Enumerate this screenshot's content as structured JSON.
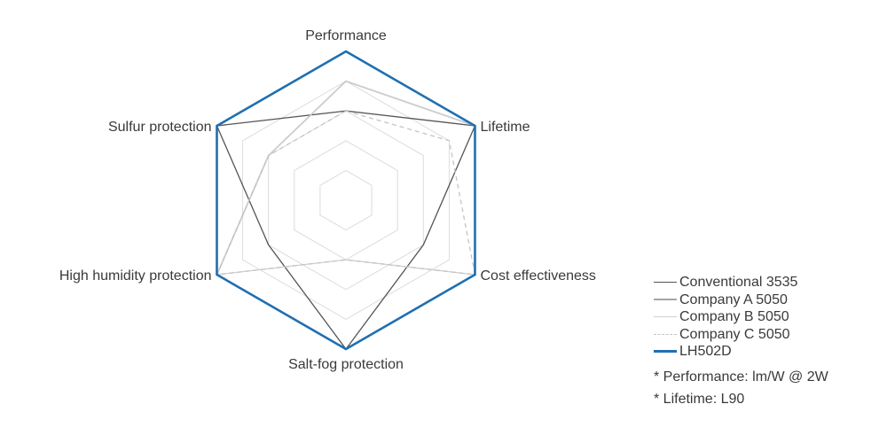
{
  "chart_data": {
    "type": "radar",
    "categories": [
      "Performance",
      "Lifetime",
      "Cost effectiveness",
      "Salt-fog protection",
      "High humidity protection",
      "Sulfur protection"
    ],
    "max": 5,
    "grid_levels": [
      1,
      2,
      3,
      4,
      5
    ],
    "series": [
      {
        "name": "Conventional 3535",
        "values": [
          3,
          5,
          3,
          5,
          3,
          5
        ],
        "color": "#555555",
        "width": 1.3,
        "dash": ""
      },
      {
        "name": "Company A 5050",
        "values": [
          4,
          5,
          5,
          5,
          5,
          3
        ],
        "color": "#a6a6a6",
        "width": 1.6,
        "dash": ""
      },
      {
        "name": "Company B 5050",
        "values": [
          4,
          5,
          5,
          2,
          5,
          3
        ],
        "color": "#d0d0d0",
        "width": 1.3,
        "dash": ""
      },
      {
        "name": "Company C 5050",
        "values": [
          3,
          4,
          5,
          2,
          5,
          3
        ],
        "color": "#c4c4c4",
        "width": 1.3,
        "dash": "5,4"
      },
      {
        "name": "LH502D",
        "values": [
          5,
          5,
          5,
          5,
          5,
          5
        ],
        "color": "#1f6fb2",
        "width": 2.6,
        "dash": ""
      }
    ],
    "legend": "bottom-right",
    "notes": [
      "* Performance: lm/W @ 2W",
      "* Lifetime: L90"
    ]
  }
}
